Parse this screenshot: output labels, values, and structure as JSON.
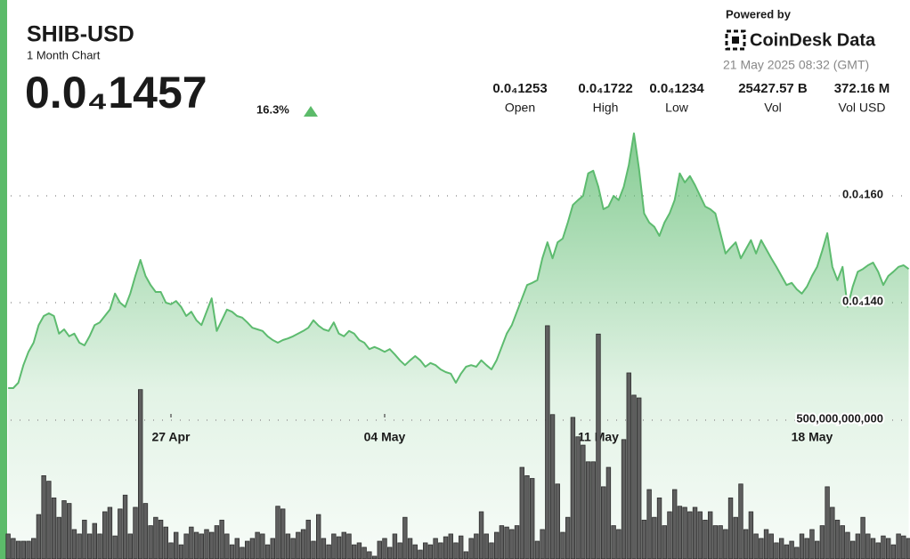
{
  "header": {
    "title": "SHIB-USD",
    "subtitle": "1 Month Chart",
    "price": "0.0₄1457",
    "change": "16.3%",
    "stats": [
      {
        "value": "0.0₄1253",
        "label": "Open"
      },
      {
        "value": "0.0₄1722",
        "label": "High"
      },
      {
        "value": "0.0₄1234",
        "label": "Low"
      },
      {
        "value": "25427.57 B",
        "label": "Vol"
      },
      {
        "value": "372.16 M",
        "label": "Vol USD"
      }
    ],
    "powered_by": "Powered by",
    "brand": "CoinDesk Data",
    "timestamp": "21 May 2025 08:32 (GMT)"
  },
  "chart_data": [
    {
      "type": "area",
      "color": "#5dbb6f",
      "grid": true,
      "categories": [
        null,
        null,
        null,
        null,
        null,
        null,
        null,
        null,
        null,
        null,
        null,
        null,
        null,
        null,
        null,
        null,
        null,
        null,
        null,
        null,
        null,
        null,
        null,
        null,
        null,
        null,
        null,
        null,
        null,
        null,
        null,
        null,
        "27 Apr",
        null,
        null,
        null,
        null,
        null,
        null,
        null,
        null,
        null,
        null,
        null,
        null,
        null,
        null,
        null,
        null,
        null,
        null,
        null,
        null,
        null,
        null,
        null,
        null,
        null,
        null,
        null,
        null,
        null,
        null,
        null,
        null,
        null,
        null,
        null,
        null,
        null,
        null,
        null,
        null,
        null,
        "04 May",
        null,
        null,
        null,
        null,
        null,
        null,
        null,
        null,
        null,
        null,
        null,
        null,
        null,
        null,
        null,
        null,
        null,
        null,
        null,
        null,
        null,
        null,
        null,
        null,
        null,
        null,
        null,
        null,
        null,
        null,
        null,
        null,
        null,
        null,
        null,
        null,
        null,
        null,
        null,
        null,
        null,
        "11 May",
        null,
        null,
        null,
        null,
        null,
        null,
        null,
        null,
        null,
        null,
        null,
        null,
        null,
        null,
        null,
        null,
        null,
        null,
        null,
        null,
        null,
        null,
        null,
        null,
        null,
        null,
        null,
        null,
        null,
        null,
        null,
        null,
        null,
        null,
        null,
        null,
        null,
        null,
        null,
        null,
        null,
        "18 May",
        null,
        null,
        null,
        null,
        null,
        null,
        null,
        null,
        null,
        null,
        null,
        null,
        null,
        null,
        null,
        null,
        null,
        null,
        null
      ],
      "values": [
        1.24e-05,
        1.24e-05,
        1.25e-05,
        1.283e-05,
        1.308e-05,
        1.325e-05,
        1.358e-05,
        1.375e-05,
        1.38e-05,
        1.375e-05,
        1.342e-05,
        1.35e-05,
        1.337e-05,
        1.342e-05,
        1.325e-05,
        1.32e-05,
        1.337e-05,
        1.358e-05,
        1.363e-05,
        1.375e-05,
        1.387e-05,
        1.417e-05,
        1.4e-05,
        1.392e-05,
        1.417e-05,
        1.45e-05,
        1.48e-05,
        1.45e-05,
        1.433e-05,
        1.42e-05,
        1.42e-05,
        1.4e-05,
        1.397e-05,
        1.403e-05,
        1.392e-05,
        1.375e-05,
        1.383e-05,
        1.367e-05,
        1.358e-05,
        1.383e-05,
        1.408e-05,
        1.347e-05,
        1.367e-05,
        1.387e-05,
        1.383e-05,
        1.375e-05,
        1.372e-05,
        1.363e-05,
        1.353e-05,
        1.35e-05,
        1.347e-05,
        1.337e-05,
        1.33e-05,
        1.325e-05,
        1.33e-05,
        1.333e-05,
        1.337e-05,
        1.342e-05,
        1.347e-05,
        1.353e-05,
        1.367e-05,
        1.357e-05,
        1.35e-05,
        1.347e-05,
        1.363e-05,
        1.342e-05,
        1.337e-05,
        1.347e-05,
        1.342e-05,
        1.33e-05,
        1.325e-05,
        1.313e-05,
        1.317e-05,
        1.313e-05,
        1.308e-05,
        1.313e-05,
        1.303e-05,
        1.292e-05,
        1.283e-05,
        1.292e-05,
        1.3e-05,
        1.292e-05,
        1.28e-05,
        1.287e-05,
        1.283e-05,
        1.275e-05,
        1.27e-05,
        1.267e-05,
        1.25e-05,
        1.267e-05,
        1.28e-05,
        1.283e-05,
        1.28e-05,
        1.292e-05,
        1.283e-05,
        1.275e-05,
        1.292e-05,
        1.317e-05,
        1.342e-05,
        1.358e-05,
        1.383e-05,
        1.408e-05,
        1.433e-05,
        1.437e-05,
        1.442e-05,
        1.483e-05,
        1.513e-05,
        1.483e-05,
        1.513e-05,
        1.52e-05,
        1.55e-05,
        1.583e-05,
        1.592e-05,
        1.6e-05,
        1.642e-05,
        1.647e-05,
        1.617e-05,
        1.575e-05,
        1.58e-05,
        1.6e-05,
        1.592e-05,
        1.617e-05,
        1.658e-05,
        1.717e-05,
        1.65e-05,
        1.567e-05,
        1.55e-05,
        1.542e-05,
        1.525e-05,
        1.55e-05,
        1.567e-05,
        1.592e-05,
        1.642e-05,
        1.625e-05,
        1.637e-05,
        1.62e-05,
        1.6e-05,
        1.58e-05,
        1.575e-05,
        1.567e-05,
        1.53e-05,
        1.492e-05,
        1.503e-05,
        1.513e-05,
        1.483e-05,
        1.5e-05,
        1.517e-05,
        1.492e-05,
        1.517e-05,
        1.5e-05,
        1.483e-05,
        1.467e-05,
        1.45e-05,
        1.433e-05,
        1.437e-05,
        1.425e-05,
        1.417e-05,
        1.43e-05,
        1.45e-05,
        1.467e-05,
        1.497e-05,
        1.53e-05,
        1.467e-05,
        1.442e-05,
        1.467e-05,
        1.392e-05,
        1.43e-05,
        1.458e-05,
        1.463e-05,
        1.47e-05,
        1.475e-05,
        1.458e-05,
        1.433e-05,
        1.45e-05,
        1.458e-05,
        1.467e-05,
        1.47e-05,
        1.463e-05
      ],
      "ylim": [
        9.2e-06,
        1.75e-05
      ],
      "yticks": [
        {
          "value": 1.6e-05,
          "label": "0.0₄160"
        },
        {
          "value": 1.4e-05,
          "label": "0.0₄140"
        }
      ]
    },
    {
      "type": "bar",
      "color": "#5e5e5e",
      "grid": true,
      "values": [
        90000000000.0,
        74000000000.0,
        64000000000.0,
        64000000000.0,
        64000000000.0,
        74000000000.0,
        160000000000.0,
        300000000000.0,
        280000000000.0,
        220000000000.0,
        150000000000.0,
        210000000000.0,
        200000000000.0,
        106000000000.0,
        90000000000.0,
        140000000000.0,
        90000000000.0,
        128000000000.0,
        90000000000.0,
        170000000000.0,
        186000000000.0,
        83000000000.0,
        180000000000.0,
        230000000000.0,
        90000000000.0,
        186000000000.0,
        610000000000.0,
        200000000000.0,
        120000000000.0,
        150000000000.0,
        140000000000.0,
        115000000000.0,
        58000000000.0,
        96000000000.0,
        51000000000.0,
        90000000000.0,
        115000000000.0,
        96000000000.0,
        90000000000.0,
        106000000000.0,
        96000000000.0,
        120000000000.0,
        140000000000.0,
        90000000000.0,
        51000000000.0,
        74000000000.0,
        42000000000.0,
        64000000000.0,
        74000000000.0,
        96000000000.0,
        90000000000.0,
        51000000000.0,
        74000000000.0,
        190000000000.0,
        180000000000.0,
        90000000000.0,
        74000000000.0,
        96000000000.0,
        106000000000.0,
        140000000000.0,
        64000000000.0,
        160000000000.0,
        74000000000.0,
        51000000000.0,
        90000000000.0,
        80000000000.0,
        96000000000.0,
        90000000000.0,
        51000000000.0,
        58000000000.0,
        42000000000.0,
        26000000000.0,
        10000000000.0,
        64000000000.0,
        74000000000.0,
        42000000000.0,
        90000000000.0,
        58000000000.0,
        150000000000.0,
        74000000000.0,
        51000000000.0,
        32000000000.0,
        58000000000.0,
        51000000000.0,
        74000000000.0,
        58000000000.0,
        80000000000.0,
        90000000000.0,
        58000000000.0,
        83000000000.0,
        26000000000.0,
        74000000000.0,
        90000000000.0,
        170000000000.0,
        90000000000.0,
        58000000000.0,
        96000000000.0,
        120000000000.0,
        115000000000.0,
        106000000000.0,
        120000000000.0,
        330000000000.0,
        300000000000.0,
        290000000000.0,
        64000000000.0,
        106000000000.0,
        840000000000.0,
        520000000000.0,
        270000000000.0,
        96000000000.0,
        150000000000.0,
        510000000000.0,
        440000000000.0,
        410000000000.0,
        350000000000.0,
        350000000000.0,
        810000000000.0,
        260000000000.0,
        330000000000.0,
        120000000000.0,
        106000000000.0,
        430000000000.0,
        670000000000.0,
        590000000000.0,
        580000000000.0,
        140000000000.0,
        250000000000.0,
        150000000000.0,
        220000000000.0,
        120000000000.0,
        170000000000.0,
        250000000000.0,
        190000000000.0,
        186000000000.0,
        170000000000.0,
        186000000000.0,
        170000000000.0,
        140000000000.0,
        170000000000.0,
        120000000000.0,
        120000000000.0,
        106000000000.0,
        220000000000.0,
        150000000000.0,
        270000000000.0,
        106000000000.0,
        170000000000.0,
        90000000000.0,
        74000000000.0,
        106000000000.0,
        90000000000.0,
        58000000000.0,
        74000000000.0,
        51000000000.0,
        64000000000.0,
        42000000000.0,
        90000000000.0,
        74000000000.0,
        106000000000.0,
        64000000000.0,
        120000000000.0,
        260000000000.0,
        186000000000.0,
        140000000000.0,
        120000000000.0,
        96000000000.0,
        64000000000.0,
        90000000000.0,
        150000000000.0,
        90000000000.0,
        74000000000.0,
        58000000000.0,
        83000000000.0,
        74000000000.0,
        51000000000.0,
        90000000000.0,
        83000000000.0,
        74000000000.0
      ],
      "ylim": [
        0,
        1000000000000.0
      ],
      "yticks": [
        {
          "value": 500000000000.0,
          "label": "500,000,000,000"
        }
      ]
    }
  ]
}
